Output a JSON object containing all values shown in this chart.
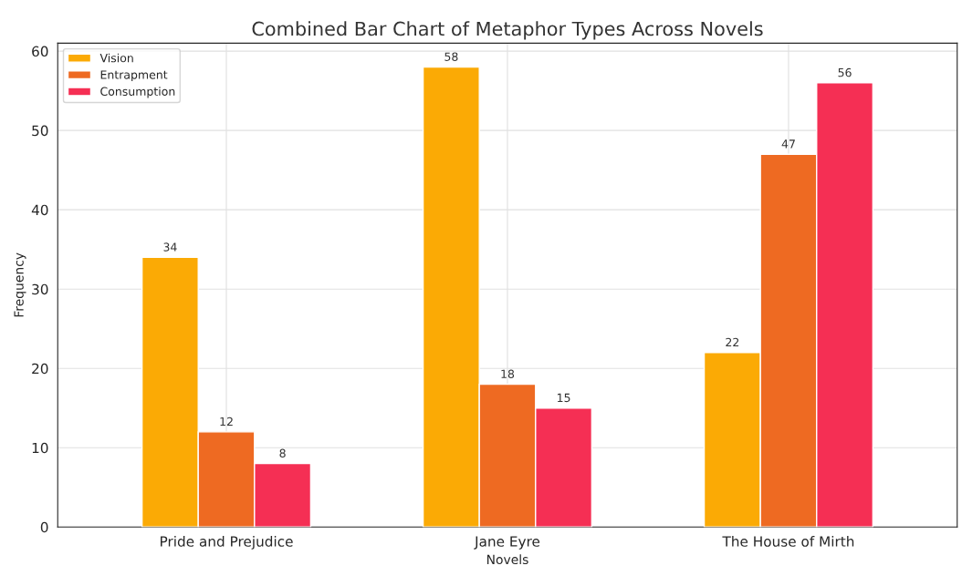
{
  "chart_data": {
    "type": "bar",
    "title": "Combined Bar Chart of Metaphor Types Across Novels",
    "xlabel": "Novels",
    "ylabel": "Frequency",
    "categories": [
      "Pride and Prejudice",
      "Jane Eyre",
      "The House of Mirth"
    ],
    "series": [
      {
        "name": "Vision",
        "color": "#fbaa05",
        "values": [
          34,
          58,
          22
        ]
      },
      {
        "name": "Entrapment",
        "color": "#ee6a22",
        "values": [
          12,
          18,
          47
        ]
      },
      {
        "name": "Consumption",
        "color": "#f52f54",
        "values": [
          8,
          15,
          56
        ]
      }
    ],
    "ylim": [
      0,
      61
    ],
    "yticks": [
      0,
      10,
      20,
      30,
      40,
      50,
      60
    ],
    "grid": true,
    "legend": "top left",
    "data_labels": true
  }
}
